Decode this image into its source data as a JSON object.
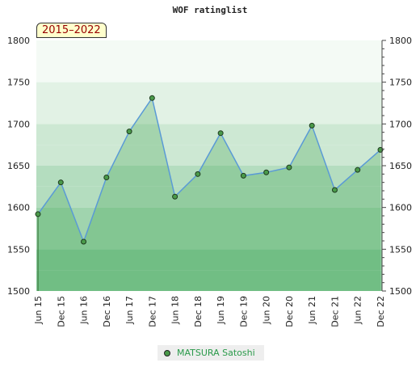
{
  "chart_data": {
    "type": "area",
    "title": "WOF ratinglist",
    "period_label": "2015–2022",
    "categories": [
      "Jun 15",
      "Dec 15",
      "Jun 16",
      "Dec 16",
      "Jun 17",
      "Dec 17",
      "Jun 18",
      "Dec 18",
      "Jun 19",
      "Dec 19",
      "Jun 20",
      "Dec 20",
      "Jun 21",
      "Dec 21",
      "Jun 22",
      "Dec 22"
    ],
    "series": [
      {
        "name": "MATSURA Satoshi",
        "values": [
          1592,
          1630,
          1559,
          1636,
          1691,
          1731,
          1613,
          1640,
          1689,
          1638,
          1642,
          1648,
          1698,
          1621,
          1645,
          1669
        ]
      }
    ],
    "ylim": [
      1500,
      1800
    ],
    "yticks": [
      1500,
      1550,
      1600,
      1650,
      1700,
      1750,
      1800
    ],
    "xlabel": "",
    "ylabel": "",
    "legend_position": "bottom-center",
    "grid": true,
    "colors": {
      "line": "#5a9ad6",
      "marker_fill": "#4a9a4a",
      "marker_stroke": "#1e3a1e",
      "area_fill": "#3aa04a",
      "legend_text": "#2a9a4a",
      "band_colors": [
        "#87c99a",
        "#a0d4ae",
        "#b4ddbf",
        "#cde8d3",
        "#e2f2e5",
        "#f4faf5"
      ]
    }
  }
}
